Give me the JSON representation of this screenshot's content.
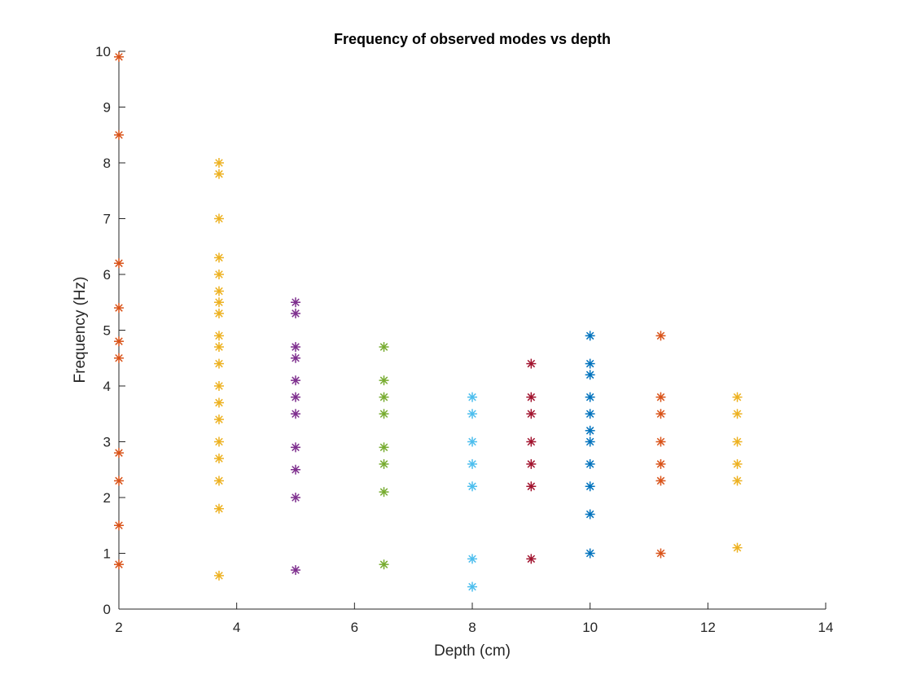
{
  "chart_data": {
    "type": "scatter",
    "title": "Frequency of observed modes vs depth",
    "xlabel": "Depth (cm)",
    "ylabel": "Frequency (Hz)",
    "xlim": [
      2,
      14
    ],
    "ylim": [
      0,
      10
    ],
    "xticks": [
      2,
      4,
      6,
      8,
      10,
      12,
      14
    ],
    "yticks": [
      0,
      1,
      2,
      3,
      4,
      5,
      6,
      7,
      8,
      9,
      10
    ],
    "marker": "asterisk",
    "grid": false,
    "legend": "none",
    "series": [
      {
        "x": 2,
        "color": "#D95319",
        "y": [
          0.8,
          1.5,
          2.3,
          2.8,
          4.5,
          4.8,
          5.4,
          6.2,
          8.5,
          9.9
        ]
      },
      {
        "x": 3.7,
        "color": "#EDB120",
        "y": [
          0.6,
          1.8,
          2.3,
          2.7,
          3.0,
          3.4,
          3.7,
          4.0,
          4.4,
          4.7,
          4.9,
          5.3,
          5.5,
          5.7,
          6.0,
          6.3,
          7.0,
          7.8,
          8.0
        ]
      },
      {
        "x": 5,
        "color": "#7E2F8E",
        "y": [
          0.7,
          2.0,
          2.5,
          2.9,
          3.5,
          3.8,
          4.1,
          4.5,
          4.7,
          5.3,
          5.5
        ]
      },
      {
        "x": 6.5,
        "color": "#77AC30",
        "y": [
          0.8,
          2.1,
          2.6,
          2.9,
          3.5,
          3.8,
          4.1,
          4.7
        ]
      },
      {
        "x": 8,
        "color": "#4DBEEE",
        "y": [
          0.4,
          0.9,
          2.2,
          2.6,
          3.0,
          3.5,
          3.8
        ]
      },
      {
        "x": 9,
        "color": "#A2142F",
        "y": [
          0.9,
          2.2,
          2.6,
          3.0,
          3.5,
          3.8,
          4.4
        ]
      },
      {
        "x": 10,
        "color": "#0072BD",
        "y": [
          1.0,
          1.7,
          2.2,
          2.6,
          3.0,
          3.2,
          3.5,
          3.8,
          4.2,
          4.4,
          4.9
        ]
      },
      {
        "x": 11.2,
        "color": "#D95319",
        "y": [
          1.0,
          2.3,
          2.6,
          3.0,
          3.5,
          3.8,
          4.9
        ]
      },
      {
        "x": 12.5,
        "color": "#EDB120",
        "y": [
          1.1,
          2.3,
          2.6,
          3.0,
          3.5,
          3.8
        ]
      }
    ]
  }
}
